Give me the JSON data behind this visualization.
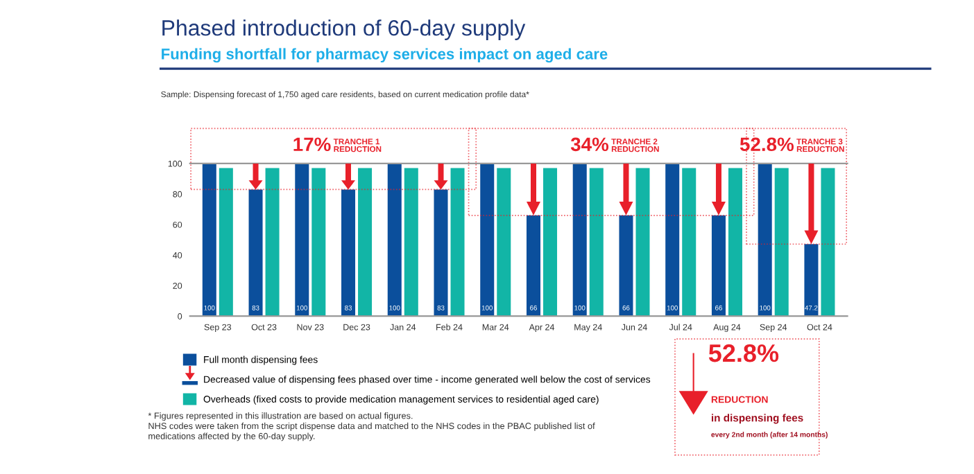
{
  "chart_data": {
    "type": "bar",
    "title": "Phased introduction of 60-day supply",
    "subtitle": "Funding shortfall for pharmacy services impact on aged care",
    "categories": [
      "Sep 23",
      "Oct 23",
      "Nov 23",
      "Dec 23",
      "Jan 24",
      "Feb 24",
      "Mar 24",
      "Apr 24",
      "May 24",
      "Jun 24",
      "Jul 24",
      "Aug 24",
      "Sep 24",
      "Oct 24"
    ],
    "series": [
      {
        "name": "Full month dispensing fees",
        "color": "#0b4f9c",
        "values": [
          100,
          83,
          100,
          83,
          100,
          83,
          100,
          66,
          100,
          66,
          100,
          66,
          100,
          47.2
        ],
        "value_labels": [
          "100",
          "83",
          "100",
          "83",
          "100",
          "83",
          "100",
          "66",
          "100",
          "66",
          "100",
          "66",
          "100",
          "47.2"
        ]
      },
      {
        "name": "Overheads (fixed costs to provide medication management services to residential aged care)",
        "color": "#12b5a6",
        "values": [
          97,
          97,
          97,
          97,
          97,
          97,
          97,
          97,
          97,
          97,
          97,
          97,
          97,
          97
        ]
      }
    ],
    "ylim": [
      0,
      100
    ],
    "yticks": [
      0,
      20,
      40,
      60,
      80,
      100
    ],
    "grid": false,
    "legend": "bottom left",
    "annotations": [
      "17% TRANCHE 1\nREDUCTION",
      "34% TRANCHE 2\nREDUCTION",
      "52.8% TRANCHE 3\nREDUCTION",
      "Sample: Dispensing forecast of 1,750 aged care residents, based on current medication profile data*",
      "Decreased value of dispensing fees phased over time - income generated well below the cost of services",
      "* Figures represented in this illustration are based on actual figures.\nNHS codes were taken from the script dispense data and matched to the NHS codes in the PBAC published list of\nmedications affected by the 60-day supply.",
      "52.8%\nREDUCTION\nin dispensing fees\nevery 2nd month (after 14 months)"
    ]
  }
}
